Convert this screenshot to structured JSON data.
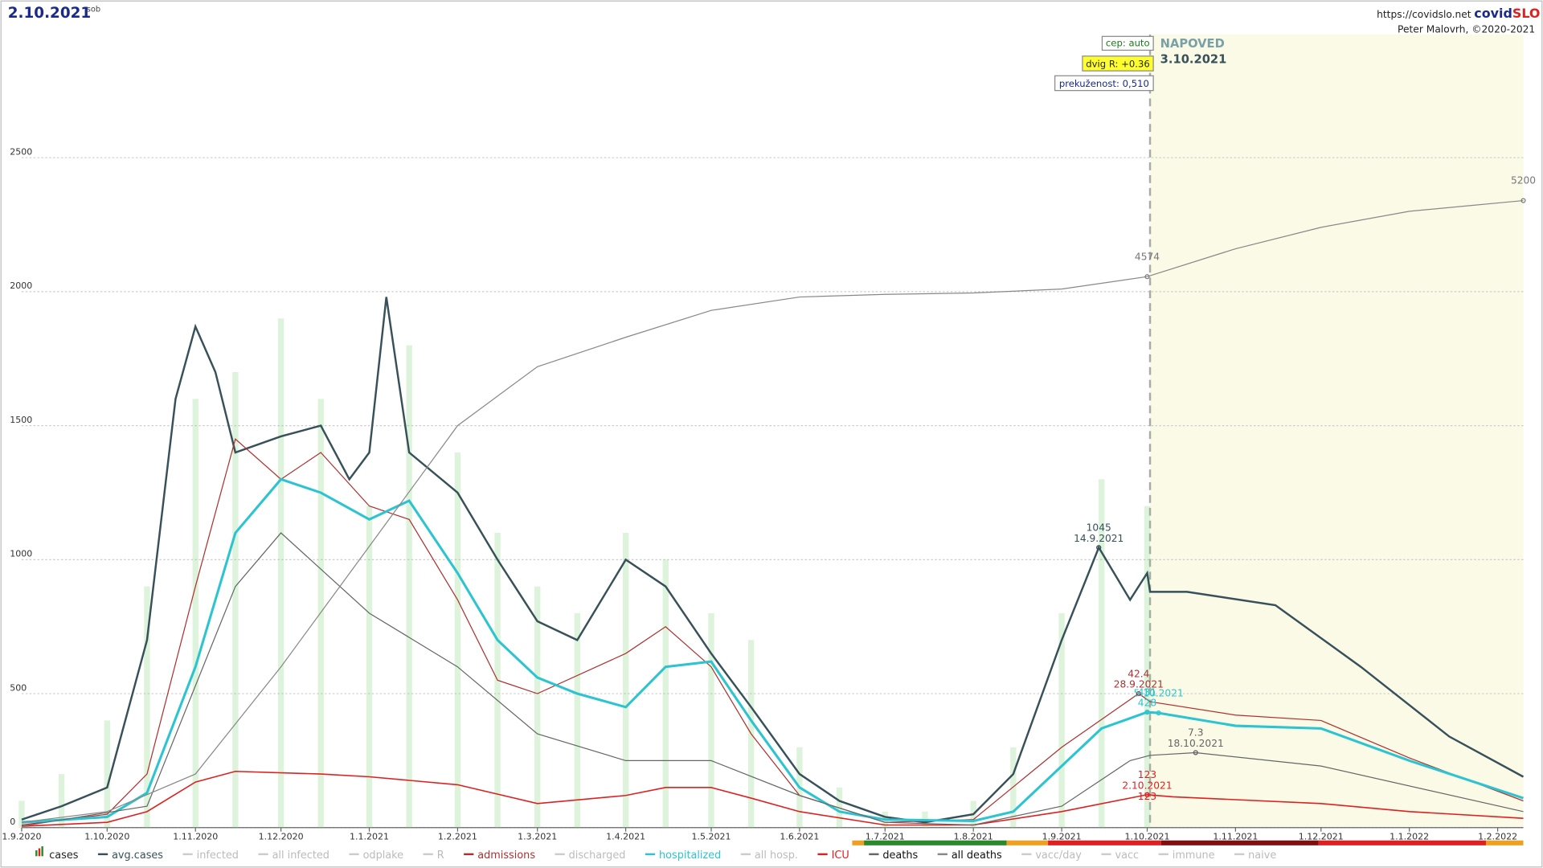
{
  "chart_data": {
    "type": "line",
    "title": "2.10.2021",
    "weekday": "sob",
    "site": "https://covidslo.net",
    "brand_a": "covid",
    "brand_b": "SLO",
    "author": "Peter Malovrh, ©2020-2021",
    "notes": [
      "cep: auto",
      "dvig R: +0.36",
      "prekuženost: 0,510"
    ],
    "forecast_label": "NAPOVED",
    "forecast_date": "3.10.2021",
    "forecast_start": "2021-10-02",
    "xlim": [
      "2020-09-01",
      "2022-02-10"
    ],
    "xticks": [
      {
        "value": "2020-09-01",
        "label": "1.9.2020"
      },
      {
        "value": "2020-10-01",
        "label": "1.10.2020"
      },
      {
        "value": "2020-11-01",
        "label": "1.11.2020"
      },
      {
        "value": "2020-12-01",
        "label": "1.12.2020"
      },
      {
        "value": "2021-01-01",
        "label": "1.1.2021"
      },
      {
        "value": "2021-02-01",
        "label": "1.2.2021"
      },
      {
        "value": "2021-03-01",
        "label": "1.3.2021"
      },
      {
        "value": "2021-04-01",
        "label": "1.4.2021"
      },
      {
        "value": "2021-05-01",
        "label": "1.5.2021"
      },
      {
        "value": "2021-06-01",
        "label": "1.6.2021"
      },
      {
        "value": "2021-07-01",
        "label": "1.7.2021"
      },
      {
        "value": "2021-08-01",
        "label": "1.8.2021"
      },
      {
        "value": "2021-09-01",
        "label": "1.9.2021"
      },
      {
        "value": "2021-10-01",
        "label": "1.10.2021"
      },
      {
        "value": "2021-11-01",
        "label": "1.11.2021"
      },
      {
        "value": "2021-12-01",
        "label": "1.12.2021"
      },
      {
        "value": "2022-01-01",
        "label": "1.1.2022"
      },
      {
        "value": "2022-02-01",
        "label": "1.2.2022"
      }
    ],
    "ylim": [
      0,
      3070
    ],
    "yticks": [
      0,
      500,
      1000,
      1500,
      2000,
      2500
    ],
    "grid": true,
    "series": [
      {
        "name": "cases",
        "kind": "bar",
        "color": "#7ccf6e",
        "enabled": true,
        "x": [
          "2020-09-01",
          "2020-09-15",
          "2020-10-01",
          "2020-10-15",
          "2020-11-01",
          "2020-11-15",
          "2020-12-01",
          "2020-12-15",
          "2021-01-01",
          "2021-01-15",
          "2021-02-01",
          "2021-02-15",
          "2021-03-01",
          "2021-03-15",
          "2021-04-01",
          "2021-04-15",
          "2021-05-01",
          "2021-05-15",
          "2021-06-01",
          "2021-06-15",
          "2021-07-01",
          "2021-07-15",
          "2021-08-01",
          "2021-08-15",
          "2021-09-01",
          "2021-09-15",
          "2021-10-01"
        ],
        "values": [
          100,
          200,
          400,
          900,
          1600,
          1700,
          1900,
          1600,
          1200,
          1800,
          1400,
          1100,
          900,
          800,
          1100,
          1000,
          800,
          700,
          300,
          150,
          60,
          60,
          100,
          300,
          800,
          1300,
          1200
        ]
      },
      {
        "name": "avg.cases",
        "kind": "line",
        "color": "#37505a",
        "width": 2,
        "enabled": true,
        "x": [
          "2020-09-01",
          "2020-09-15",
          "2020-10-01",
          "2020-10-15",
          "2020-10-25",
          "2020-11-01",
          "2020-11-08",
          "2020-11-15",
          "2020-12-01",
          "2020-12-15",
          "2020-12-25",
          "2021-01-01",
          "2021-01-07",
          "2021-01-15",
          "2021-02-01",
          "2021-02-15",
          "2021-03-01",
          "2021-03-15",
          "2021-04-01",
          "2021-04-15",
          "2021-05-01",
          "2021-05-15",
          "2021-06-01",
          "2021-06-15",
          "2021-07-01",
          "2021-07-15",
          "2021-08-01",
          "2021-08-15",
          "2021-09-01",
          "2021-09-14",
          "2021-09-25",
          "2021-10-01",
          "2021-10-02",
          "2021-10-15",
          "2021-11-15",
          "2021-12-15",
          "2022-01-15",
          "2022-02-10"
        ],
        "values": [
          30,
          80,
          150,
          700,
          1600,
          1870,
          1700,
          1400,
          1460,
          1500,
          1300,
          1400,
          1980,
          1400,
          1250,
          1000,
          770,
          700,
          1000,
          900,
          650,
          450,
          200,
          100,
          40,
          20,
          50,
          200,
          700,
          1045,
          850,
          950,
          880,
          880,
          830,
          600,
          340,
          190
        ]
      },
      {
        "name": "infected",
        "kind": "line",
        "color": "#ccc",
        "enabled": false,
        "x": [],
        "values": []
      },
      {
        "name": "all infected",
        "kind": "line",
        "color": "#ccc",
        "enabled": false,
        "x": [],
        "values": []
      },
      {
        "name": "odplake",
        "kind": "line",
        "color": "#ccc",
        "enabled": false,
        "x": [],
        "values": []
      },
      {
        "name": "R",
        "kind": "line",
        "color": "#ccc",
        "enabled": false,
        "x": [],
        "values": []
      },
      {
        "name": "admissions",
        "kind": "line",
        "color": "#b03030",
        "width": 1,
        "enabled": true,
        "x": [
          "2020-09-01",
          "2020-10-01",
          "2020-10-15",
          "2020-11-01",
          "2020-11-15",
          "2020-12-01",
          "2020-12-15",
          "2021-01-01",
          "2021-01-15",
          "2021-02-01",
          "2021-02-15",
          "2021-03-01",
          "2021-04-01",
          "2021-04-15",
          "2021-05-01",
          "2021-05-15",
          "2021-06-01",
          "2021-07-01",
          "2021-08-01",
          "2021-09-01",
          "2021-09-28",
          "2021-10-02",
          "2021-11-01",
          "2021-12-01",
          "2022-01-01",
          "2022-02-10"
        ],
        "values": [
          10,
          50,
          200,
          900,
          1450,
          1300,
          1400,
          1200,
          1150,
          850,
          550,
          500,
          650,
          750,
          600,
          350,
          120,
          20,
          30,
          300,
          500,
          470,
          420,
          400,
          260,
          100
        ]
      },
      {
        "name": "discharged",
        "kind": "line",
        "color": "#ccc",
        "enabled": false,
        "x": [],
        "values": []
      },
      {
        "name": "hospitalized",
        "kind": "line",
        "color": "#2cc4d0",
        "width": 2.5,
        "enabled": true,
        "x": [
          "2020-09-01",
          "2020-10-01",
          "2020-10-15",
          "2020-11-01",
          "2020-11-15",
          "2020-12-01",
          "2020-12-15",
          "2021-01-01",
          "2021-01-15",
          "2021-02-01",
          "2021-02-15",
          "2021-03-01",
          "2021-03-15",
          "2021-04-01",
          "2021-04-15",
          "2021-05-01",
          "2021-05-15",
          "2021-06-01",
          "2021-06-15",
          "2021-07-01",
          "2021-08-01",
          "2021-08-15",
          "2021-09-01",
          "2021-09-15",
          "2021-10-01",
          "2021-10-05",
          "2021-11-01",
          "2021-12-01",
          "2022-01-01",
          "2022-02-10"
        ],
        "values": [
          20,
          40,
          130,
          600,
          1100,
          1300,
          1250,
          1150,
          1220,
          950,
          700,
          560,
          500,
          450,
          600,
          620,
          400,
          150,
          60,
          30,
          25,
          60,
          230,
          370,
          431,
          428,
          380,
          370,
          250,
          110
        ]
      },
      {
        "name": "all hosp.",
        "kind": "line",
        "color": "#ccc",
        "enabled": false,
        "x": [],
        "values": []
      },
      {
        "name": "ICU",
        "kind": "line",
        "color": "#e02020",
        "width": 1.3,
        "enabled": true,
        "x": [
          "2020-09-01",
          "2020-10-01",
          "2020-10-15",
          "2020-11-01",
          "2020-11-15",
          "2020-12-15",
          "2021-01-01",
          "2021-02-01",
          "2021-03-01",
          "2021-04-01",
          "2021-04-15",
          "2021-05-01",
          "2021-05-15",
          "2021-06-01",
          "2021-07-01",
          "2021-08-01",
          "2021-09-01",
          "2021-10-01",
          "2021-10-10",
          "2021-12-01",
          "2022-01-01",
          "2022-02-10"
        ],
        "values": [
          5,
          20,
          60,
          170,
          210,
          200,
          190,
          160,
          90,
          120,
          150,
          150,
          110,
          60,
          10,
          10,
          60,
          123,
          115,
          90,
          60,
          35
        ]
      },
      {
        "name": "deaths",
        "kind": "line",
        "color": "#666",
        "width": 1,
        "enabled": true,
        "x": [
          "2020-09-01",
          "2020-10-15",
          "2020-11-15",
          "2020-12-01",
          "2021-01-01",
          "2021-02-01",
          "2021-03-01",
          "2021-04-01",
          "2021-05-01",
          "2021-06-01",
          "2021-07-01",
          "2021-08-01",
          "2021-09-01",
          "2021-09-25",
          "2021-10-02",
          "2021-10-18",
          "2021-12-01",
          "2022-02-10"
        ],
        "values": [
          5,
          80,
          900,
          1100,
          800,
          600,
          350,
          250,
          250,
          120,
          20,
          10,
          80,
          250,
          270,
          280,
          230,
          60
        ]
      },
      {
        "name": "all deaths",
        "kind": "line",
        "color": "#888",
        "width": 1,
        "enabled": true,
        "x": [
          "2020-09-01",
          "2020-10-01",
          "2020-11-01",
          "2020-12-01",
          "2021-01-01",
          "2021-02-01",
          "2021-03-01",
          "2021-04-01",
          "2021-05-01",
          "2021-06-01",
          "2021-07-01",
          "2021-08-01",
          "2021-09-01",
          "2021-10-01",
          "2021-11-01",
          "2021-12-01",
          "2022-01-01",
          "2022-02-10"
        ],
        "values": [
          20,
          60,
          200,
          600,
          1050,
          1500,
          1720,
          1830,
          1930,
          1980,
          1990,
          1995,
          2010,
          2056,
          2160,
          2240,
          2300,
          2340
        ]
      },
      {
        "name": "vacc/day",
        "kind": "line",
        "color": "#ccc",
        "enabled": false,
        "x": [],
        "values": []
      },
      {
        "name": "vacc",
        "kind": "line",
        "color": "#ccc",
        "enabled": false,
        "x": [],
        "values": []
      },
      {
        "name": "immune",
        "kind": "line",
        "color": "#ccc",
        "enabled": false,
        "x": [],
        "values": []
      },
      {
        "name": "naive",
        "kind": "line",
        "color": "#ccc",
        "enabled": false,
        "x": [],
        "values": []
      }
    ],
    "annotations": [
      {
        "x": "2021-09-14",
        "y": 1045,
        "text": "1045",
        "color": "#37505a"
      },
      {
        "x": "2021-09-14",
        "y": 1045,
        "text": "14.9.2021",
        "color": "#37505a"
      },
      {
        "x": "2021-09-28",
        "y": 500,
        "text": "42.4",
        "color": "#b03030"
      },
      {
        "x": "2021-09-28",
        "y": 500,
        "text": "28.9.2021",
        "color": "#b03030"
      },
      {
        "x": "2021-10-01",
        "y": 431,
        "text": "431",
        "color": "#2cc4d0"
      },
      {
        "x": "2021-10-05",
        "y": 428,
        "text": "5.10.2021",
        "color": "#2cc4d0"
      },
      {
        "x": "2021-10-01",
        "y": 431,
        "text": "428",
        "color": "#2cc4d0"
      },
      {
        "x": "2021-10-18",
        "y": 280,
        "text": "7.3",
        "color": "#666"
      },
      {
        "x": "2021-10-18",
        "y": 280,
        "text": "18.10.2021",
        "color": "#666"
      },
      {
        "x": "2021-10-01",
        "y": 123,
        "text": "123",
        "color": "#e02020"
      },
      {
        "x": "2021-10-01",
        "y": 123,
        "text": "2.10.2021",
        "color": "#e02020"
      },
      {
        "x": "2021-10-01",
        "y": 123,
        "text": "123",
        "color": "#e02020"
      },
      {
        "x": "2021-10-01",
        "y": 2056,
        "text": "4574",
        "color": "#777"
      },
      {
        "x": "2022-02-10",
        "y": 2340,
        "text": "5200",
        "color": "#777"
      }
    ]
  }
}
